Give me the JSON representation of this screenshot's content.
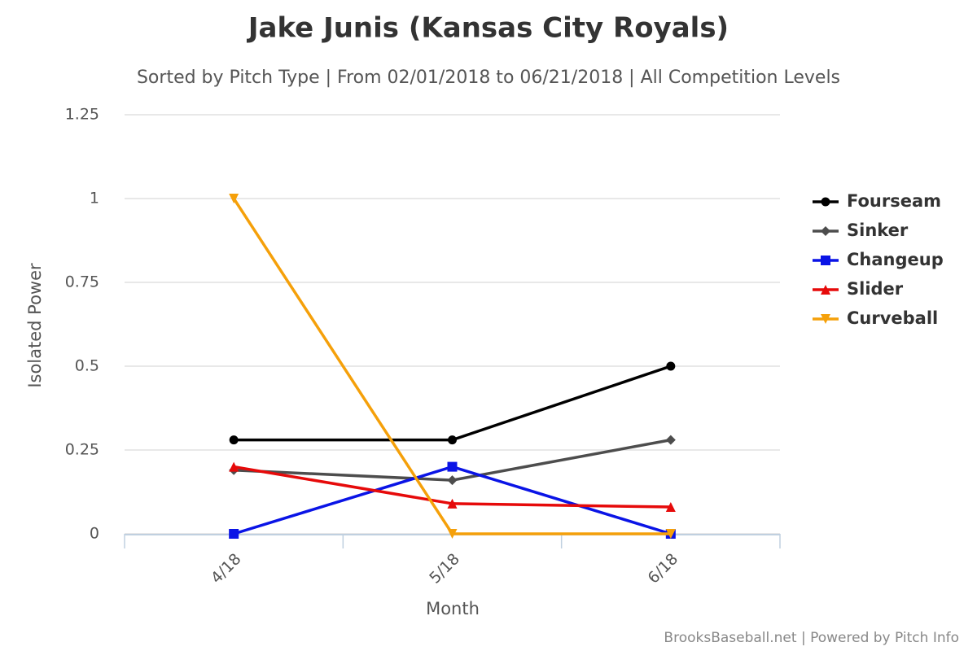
{
  "chart_data": {
    "type": "line",
    "title": "Jake Junis (Kansas City Royals)",
    "subtitle": "Sorted by Pitch Type | From 02/01/2018 to 06/21/2018 | All Competition Levels",
    "x_label": "Month",
    "y_label": "Isolated Power",
    "categories": [
      "4/18",
      "5/18",
      "6/18"
    ],
    "series": [
      {
        "name": "Fourseam",
        "color": "#000000",
        "marker": "circle",
        "values": [
          0.28,
          0.28,
          0.5
        ]
      },
      {
        "name": "Sinker",
        "color": "#4d4d4d",
        "marker": "diamond",
        "values": [
          0.19,
          0.16,
          0.28
        ]
      },
      {
        "name": "Changeup",
        "color": "#0a14e6",
        "marker": "square",
        "values": [
          0,
          0.2,
          0
        ]
      },
      {
        "name": "Slider",
        "color": "#e60a0a",
        "marker": "triangle",
        "values": [
          0.2,
          0.09,
          0.08
        ]
      },
      {
        "name": "Curveball",
        "color": "#f5a00a",
        "marker": "triangle-down",
        "values": [
          1,
          0,
          0
        ]
      }
    ],
    "ylim": [
      0,
      1.25
    ],
    "yticks": [
      0,
      0.25,
      0.5,
      0.75,
      1,
      1.25
    ],
    "grid": true,
    "legend": "right",
    "credit": "BrooksBaseball.net | Powered by Pitch Info"
  }
}
